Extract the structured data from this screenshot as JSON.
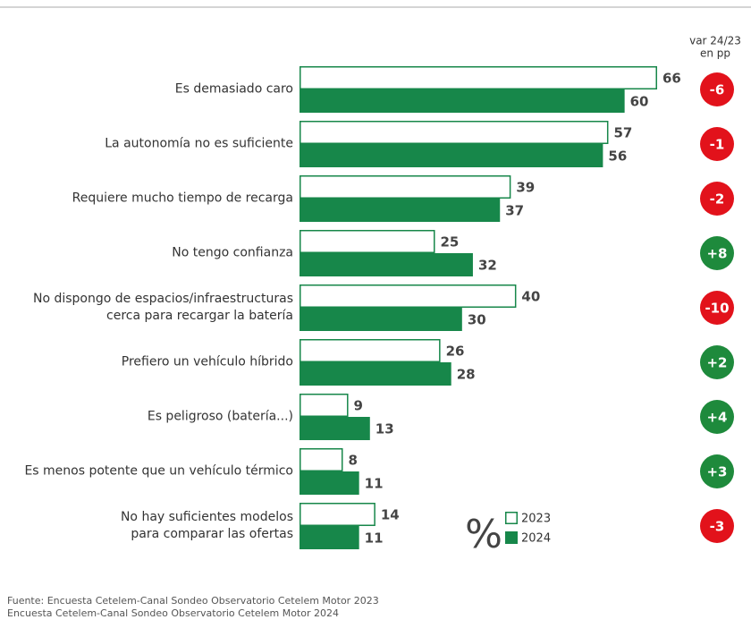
{
  "chart_data": {
    "type": "bar",
    "orientation": "horizontal",
    "categories": [
      "Es demasiado caro",
      "La autonomía no es suficiente",
      "Requiere mucho tiempo de recarga",
      "No tengo confianza",
      "No dispongo de espacios/infraestructuras\ncerca para recargar la batería",
      "Prefiero un vehículo híbrido",
      "Es peligroso (batería...)",
      "Es menos potente que un vehículo térmico",
      "No hay suficientes modelos\npara comparar las ofertas"
    ],
    "series": [
      {
        "name": "2023",
        "color": "#17874a",
        "filled": false,
        "values": [
          66,
          57,
          39,
          25,
          40,
          26,
          9,
          8,
          14
        ]
      },
      {
        "name": "2024",
        "color": "#17874a",
        "filled": true,
        "values": [
          60,
          56,
          37,
          32,
          30,
          28,
          13,
          11,
          11
        ]
      }
    ],
    "legend_symbol": "%",
    "change": {
      "title": [
        "var 24/23",
        "en pp"
      ],
      "values": [
        -6,
        -1,
        -2,
        8,
        -10,
        2,
        4,
        3,
        -3
      ],
      "value_labels": [
        "-6",
        "-1",
        "-2",
        "+8",
        "-10",
        "+2",
        "+4",
        "+3",
        "-3"
      ],
      "positive_color": "#1e8a3c",
      "negative_color": "#e2121b"
    },
    "source": [
      "Fuente: Encuesta Cetelem-Canal Sondeo Observatorio Cetelem Motor 2023",
      "Encuesta Cetelem-Canal Sondeo Observatorio Cetelem Motor 2024"
    ]
  }
}
